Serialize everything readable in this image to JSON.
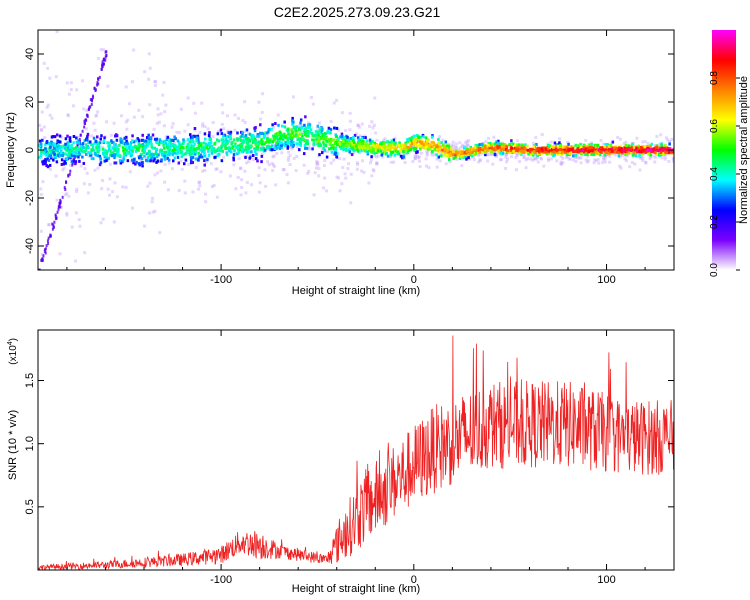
{
  "title": "C2E2.2025.273.09.23.G21",
  "chart_data": [
    {
      "type": "heatmap",
      "name": "spectrogram",
      "xlabel": "Height of straight line (km)",
      "ylabel": "Frequency (Hz)",
      "xlim": [
        -195,
        135
      ],
      "ylim": [
        -50,
        50
      ],
      "xticks": [
        -100,
        0,
        100
      ],
      "yticks": [
        -40,
        -20,
        0,
        20,
        40
      ],
      "x_tick_labels": [
        "-100",
        "0",
        "100"
      ],
      "y_tick_labels": [
        "-40",
        "-20",
        "0",
        "20",
        "40"
      ],
      "colorbar": {
        "label": "Normalized spectral amplitude",
        "range": [
          0,
          1
        ],
        "ticks": [
          0.0,
          0.2,
          0.4,
          0.6,
          0.8
        ],
        "tick_labels": [
          "0.0",
          "0.2",
          "0.4",
          "0.6",
          "0.8"
        ],
        "colormap": [
          "#ffffff",
          "#7a00ff",
          "#0000ff",
          "#00ffff",
          "#00ff00",
          "#ffff00",
          "#ff8000",
          "#ff0000",
          "#ff00ff"
        ]
      },
      "ridge": [
        {
          "x": -190,
          "f": 0,
          "amp": 0.35
        },
        {
          "x": -150,
          "f": 0,
          "amp": 0.4
        },
        {
          "x": -110,
          "f": 1,
          "amp": 0.42
        },
        {
          "x": -80,
          "f": 3,
          "amp": 0.45
        },
        {
          "x": -65,
          "f": 7,
          "amp": 0.48
        },
        {
          "x": -40,
          "f": 3,
          "amp": 0.5
        },
        {
          "x": -20,
          "f": 1,
          "amp": 0.6
        },
        {
          "x": -5,
          "f": 1,
          "amp": 0.65
        },
        {
          "x": 0,
          "f": 3,
          "amp": 0.68
        },
        {
          "x": 10,
          "f": 2,
          "amp": 0.72
        },
        {
          "x": 20,
          "f": -2,
          "amp": 0.75
        },
        {
          "x": 40,
          "f": 1,
          "amp": 0.8
        },
        {
          "x": 60,
          "f": 0,
          "amp": 0.85
        },
        {
          "x": 90,
          "f": 0,
          "amp": 0.9
        },
        {
          "x": 135,
          "f": 0,
          "amp": 0.95
        }
      ]
    },
    {
      "type": "line",
      "name": "snr",
      "xlabel": "Height of straight line (km)",
      "ylabel": "SNR (10 * v/v)",
      "scale_label": "(x10",
      "scale_exp": "4",
      "scale_close": ")",
      "xlim": [
        -195,
        135
      ],
      "ylim": [
        0,
        1.9
      ],
      "xticks": [
        -100,
        0,
        100
      ],
      "yticks": [
        0.5,
        1.0,
        1.5
      ],
      "x_tick_labels": [
        "-100",
        "0",
        "100"
      ],
      "y_tick_labels": [
        "0.5",
        "1.0",
        "1.5"
      ],
      "color": "#ee2222",
      "trend": [
        {
          "x": -195,
          "mean": 0.02,
          "noise": 0.02
        },
        {
          "x": -160,
          "mean": 0.04,
          "noise": 0.03
        },
        {
          "x": -120,
          "mean": 0.08,
          "noise": 0.05
        },
        {
          "x": -100,
          "mean": 0.12,
          "noise": 0.07
        },
        {
          "x": -90,
          "mean": 0.22,
          "noise": 0.1
        },
        {
          "x": -80,
          "mean": 0.2,
          "noise": 0.12
        },
        {
          "x": -70,
          "mean": 0.15,
          "noise": 0.06
        },
        {
          "x": -45,
          "mean": 0.08,
          "noise": 0.04
        },
        {
          "x": -38,
          "mean": 0.25,
          "noise": 0.2
        },
        {
          "x": -25,
          "mean": 0.5,
          "noise": 0.3
        },
        {
          "x": -10,
          "mean": 0.7,
          "noise": 0.3
        },
        {
          "x": 10,
          "mean": 0.95,
          "noise": 0.35
        },
        {
          "x": 40,
          "mean": 1.15,
          "noise": 0.35
        },
        {
          "x": 80,
          "mean": 1.15,
          "noise": 0.35
        },
        {
          "x": 110,
          "mean": 1.05,
          "noise": 0.3
        },
        {
          "x": 135,
          "mean": 1.05,
          "noise": 0.3
        }
      ]
    }
  ]
}
